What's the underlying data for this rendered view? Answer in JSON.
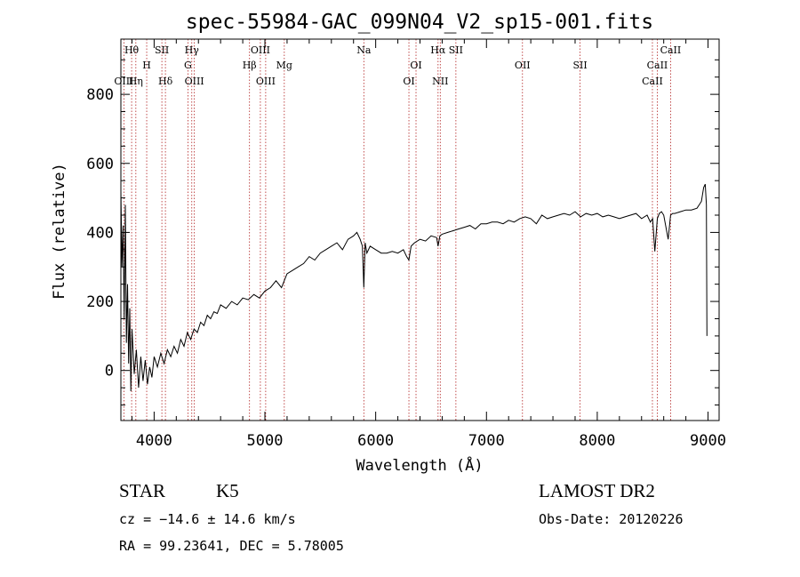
{
  "chart_data": {
    "type": "line",
    "title": "spec-55984-GAC_099N04_V2_sp15-001.fits",
    "xlabel": "Wavelength (Å)",
    "ylabel": "Flux (relative)",
    "xlim": [
      3700,
      9100
    ],
    "ylim": [
      -145,
      960
    ],
    "x_ticks": [
      4000,
      5000,
      6000,
      7000,
      8000,
      9000
    ],
    "y_ticks": [
      0,
      200,
      400,
      600,
      800
    ],
    "x_tick_labels": [
      "4000",
      "5000",
      "6000",
      "7000",
      "8000",
      "9000"
    ],
    "y_tick_labels": [
      "0",
      "200",
      "400",
      "600",
      "800"
    ],
    "line_color": "#000000",
    "marker_color": "#b22222",
    "spectral_lines": [
      {
        "label": "Hθ",
        "x": 3797,
        "row": 0
      },
      {
        "label": "OIII",
        "x": 3727,
        "row": 2
      },
      {
        "label": "Hη",
        "x": 3835,
        "row": 2
      },
      {
        "label": "H",
        "x": 3933,
        "row": 1
      },
      {
        "label": "SII",
        "x": 4070,
        "row": 0
      },
      {
        "label": "Hδ",
        "x": 4102,
        "row": 2
      },
      {
        "label": "Hγ",
        "x": 4340,
        "row": 0
      },
      {
        "label": "G",
        "x": 4305,
        "row": 1
      },
      {
        "label": "OIII",
        "x": 4363,
        "row": 2
      },
      {
        "label": "OIII",
        "x": 4959,
        "row": 0
      },
      {
        "label": "Hβ",
        "x": 4861,
        "row": 1
      },
      {
        "label": "OIII",
        "x": 5007,
        "row": 2
      },
      {
        "label": "Mg",
        "x": 5175,
        "row": 1
      },
      {
        "label": "Na",
        "x": 5893,
        "row": 0
      },
      {
        "label": "OI",
        "x": 6364,
        "row": 1
      },
      {
        "label": "OI",
        "x": 6300,
        "row": 2
      },
      {
        "label": "Hα",
        "x": 6563,
        "row": 0
      },
      {
        "label": "SII",
        "x": 6724,
        "row": 0
      },
      {
        "label": "NII",
        "x": 6583,
        "row": 2
      },
      {
        "label": "OII",
        "x": 7325,
        "row": 1
      },
      {
        "label": "SII",
        "x": 7845,
        "row": 1
      },
      {
        "label": "CaII",
        "x": 8662,
        "row": 0
      },
      {
        "label": "CaII",
        "x": 8542,
        "row": 1
      },
      {
        "label": "CaII",
        "x": 8498,
        "row": 2
      }
    ],
    "series": [
      {
        "x": [
          3700,
          3710,
          3720,
          3730,
          3740,
          3750,
          3760,
          3770,
          3780,
          3790,
          3800,
          3820,
          3840,
          3860,
          3880,
          3900,
          3920,
          3940,
          3960,
          3980,
          4000,
          4030,
          4060,
          4090,
          4120,
          4150,
          4180,
          4210,
          4240,
          4270,
          4300,
          4330,
          4360,
          4390,
          4420,
          4450,
          4480,
          4510,
          4540,
          4570,
          4600,
          4650,
          4700,
          4750,
          4800,
          4850,
          4900,
          4950,
          5000,
          5050,
          5100,
          5150,
          5200,
          5250,
          5300,
          5350,
          5400,
          5450,
          5500,
          5550,
          5600,
          5650,
          5700,
          5750,
          5800,
          5830,
          5860,
          5880,
          5893,
          5905,
          5920,
          5950,
          6000,
          6050,
          6100,
          6150,
          6200,
          6250,
          6280,
          6300,
          6320,
          6350,
          6400,
          6450,
          6500,
          6550,
          6563,
          6580,
          6600,
          6650,
          6700,
          6750,
          6800,
          6850,
          6900,
          6950,
          7000,
          7050,
          7100,
          7150,
          7200,
          7250,
          7300,
          7350,
          7400,
          7450,
          7500,
          7550,
          7600,
          7650,
          7700,
          7750,
          7800,
          7850,
          7900,
          7950,
          8000,
          8050,
          8100,
          8150,
          8200,
          8250,
          8300,
          8350,
          8400,
          8450,
          8480,
          8500,
          8520,
          8542,
          8560,
          8580,
          8600,
          8640,
          8662,
          8680,
          8700,
          8750,
          8800,
          8850,
          8900,
          8920,
          8940,
          8960,
          8975,
          8985,
          8990
        ],
        "y": [
          520,
          300,
          420,
          150,
          480,
          80,
          250,
          20,
          180,
          -60,
          120,
          -10,
          60,
          -50,
          40,
          -30,
          30,
          -40,
          10,
          -20,
          40,
          10,
          50,
          20,
          60,
          40,
          70,
          50,
          90,
          70,
          110,
          90,
          120,
          110,
          140,
          130,
          160,
          150,
          170,
          165,
          190,
          180,
          200,
          190,
          210,
          205,
          220,
          210,
          230,
          240,
          260,
          240,
          280,
          290,
          300,
          310,
          330,
          320,
          340,
          350,
          360,
          370,
          350,
          380,
          390,
          400,
          380,
          360,
          240,
          370,
          340,
          360,
          350,
          340,
          340,
          345,
          340,
          350,
          330,
          320,
          360,
          370,
          380,
          375,
          390,
          385,
          360,
          390,
          395,
          400,
          405,
          410,
          415,
          420,
          410,
          425,
          425,
          430,
          430,
          425,
          435,
          430,
          440,
          445,
          440,
          425,
          450,
          440,
          445,
          450,
          455,
          450,
          460,
          445,
          455,
          450,
          455,
          445,
          450,
          445,
          440,
          445,
          450,
          455,
          440,
          450,
          430,
          440,
          345,
          440,
          455,
          460,
          450,
          380,
          450,
          455,
          455,
          460,
          465,
          465,
          470,
          480,
          490,
          530,
          540,
          480,
          100
        ]
      }
    ]
  },
  "footer": {
    "obj_class": "STAR",
    "subclass": "K5",
    "survey": "LAMOST DR2",
    "cz": "cz = −14.6 ± 14.6 km/s",
    "obs_date": "Obs-Date: 20120226",
    "radec": "RA =  99.23641, DEC =   5.78005"
  }
}
